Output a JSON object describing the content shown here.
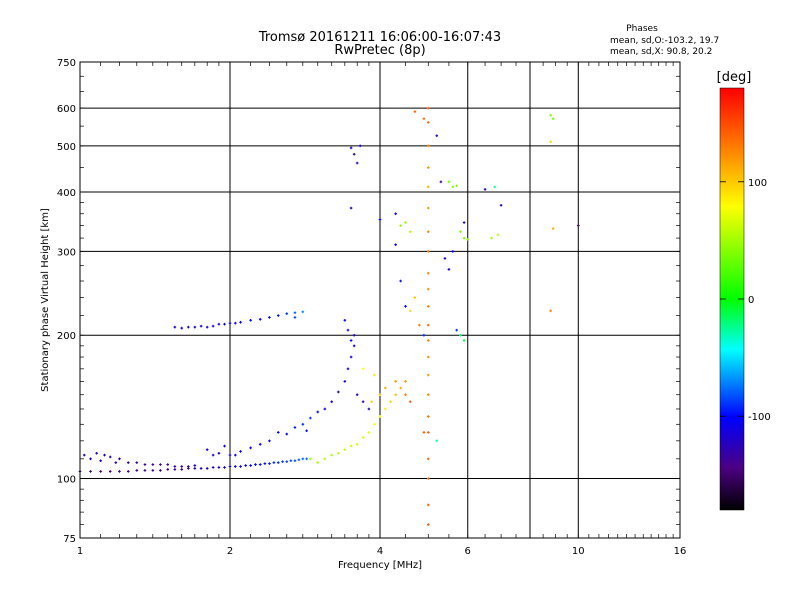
{
  "chart_data": {
    "type": "scatter",
    "title": "Tromsø 20161211 16:06:00-16:07:43",
    "subtitle": "RwPretec (8p)",
    "info": {
      "heading": "Phases",
      "line1": "mean, sd,O:-103.2, 19.7",
      "line2": "mean, sd,X:  90.8, 20.2"
    },
    "xlabel": "Frequency [MHz]",
    "ylabel": "Stationary phase Virtual Height [km]",
    "x_scale": "log",
    "y_scale": "log",
    "xlim": [
      1,
      16
    ],
    "ylim": [
      75,
      750
    ],
    "x_ticks": [
      {
        "v": 1,
        "label": "1"
      },
      {
        "v": 2,
        "label": "2"
      },
      {
        "v": 4,
        "label": "4"
      },
      {
        "v": 6,
        "label": "6"
      },
      {
        "v": 8,
        "label": ""
      },
      {
        "v": 10,
        "label": "10"
      },
      {
        "v": 16,
        "label": "16"
      }
    ],
    "y_ticks": [
      {
        "v": 75,
        "label": "75"
      },
      {
        "v": 100,
        "label": "100"
      },
      {
        "v": 200,
        "label": "200"
      },
      {
        "v": 300,
        "label": "300"
      },
      {
        "v": 400,
        "label": "400"
      },
      {
        "v": 500,
        "label": "500"
      },
      {
        "v": 600,
        "label": "600"
      },
      {
        "v": 750,
        "label": "750"
      }
    ],
    "grid": true,
    "colorbar": {
      "label": "[deg]",
      "range": [
        -180,
        180
      ],
      "ticks": [
        {
          "v": 100,
          "label": "100"
        },
        {
          "v": 0,
          "label": "0"
        },
        {
          "v": -100,
          "label": "-100"
        }
      ]
    },
    "series": [
      {
        "points": [
          [
            1.0,
            103.5,
            -150
          ],
          [
            1.05,
            103.5,
            -148
          ],
          [
            1.1,
            103.5,
            -146
          ],
          [
            1.15,
            103.5,
            -144
          ],
          [
            1.2,
            103.5,
            -142
          ],
          [
            1.25,
            103.5,
            -140
          ],
          [
            1.3,
            104,
            -138
          ],
          [
            1.35,
            104,
            -136
          ],
          [
            1.4,
            104,
            -134
          ],
          [
            1.45,
            104,
            -132
          ],
          [
            1.5,
            104.5,
            -130
          ],
          [
            1.55,
            104.5,
            -128
          ],
          [
            1.6,
            104.5,
            -126
          ],
          [
            1.65,
            105,
            -124
          ],
          [
            1.7,
            105,
            -122
          ],
          [
            1.75,
            105,
            -120
          ],
          [
            1.8,
            105,
            -118
          ],
          [
            1.85,
            105.5,
            -116
          ],
          [
            1.9,
            105.5,
            -114
          ],
          [
            1.95,
            105.5,
            -112
          ],
          [
            2.0,
            106,
            -110
          ],
          [
            2.05,
            106,
            -108
          ],
          [
            2.1,
            106,
            -106
          ],
          [
            2.15,
            106.5,
            -104
          ],
          [
            2.2,
            106.5,
            -102
          ],
          [
            2.25,
            107,
            -100
          ],
          [
            2.3,
            107,
            -98
          ],
          [
            2.35,
            107.5,
            -96
          ],
          [
            2.4,
            107.5,
            -94
          ],
          [
            2.45,
            108,
            -92
          ],
          [
            2.5,
            108,
            -90
          ],
          [
            2.55,
            108.5,
            -88
          ],
          [
            2.6,
            108.5,
            -86
          ],
          [
            2.65,
            109,
            -84
          ],
          [
            2.7,
            109,
            -82
          ],
          [
            2.75,
            109.5,
            -80
          ],
          [
            2.8,
            110,
            -78
          ],
          [
            2.85,
            110,
            -76
          ]
        ]
      },
      {
        "points": [
          [
            1.02,
            112,
            -120
          ],
          [
            1.05,
            110,
            -115
          ],
          [
            1.08,
            113,
            -112
          ],
          [
            1.1,
            109,
            -118
          ],
          [
            1.12,
            112,
            -110
          ],
          [
            1.15,
            111,
            -120
          ],
          [
            1.18,
            108,
            -122
          ],
          [
            1.2,
            110,
            -125
          ],
          [
            1.25,
            108,
            -128
          ],
          [
            1.3,
            108,
            -130
          ],
          [
            1.35,
            107,
            -132
          ],
          [
            1.4,
            107,
            -135
          ],
          [
            1.45,
            107,
            -133
          ],
          [
            1.5,
            107,
            -130
          ],
          [
            1.55,
            106,
            -128
          ],
          [
            1.6,
            106,
            -126
          ],
          [
            1.65,
            106,
            -124
          ],
          [
            1.7,
            106.5,
            -122
          ],
          [
            1.8,
            115,
            -110
          ],
          [
            1.85,
            112,
            -112
          ],
          [
            1.9,
            113,
            -115
          ],
          [
            1.95,
            117,
            -108
          ],
          [
            2.0,
            112,
            -110
          ],
          [
            2.05,
            112,
            -108
          ],
          [
            2.1,
            114,
            -106
          ],
          [
            2.2,
            116,
            -105
          ],
          [
            2.3,
            118,
            -100
          ],
          [
            2.4,
            120,
            -98
          ],
          [
            2.5,
            125,
            -102
          ],
          [
            2.6,
            124,
            -100
          ],
          [
            2.7,
            128,
            -95
          ],
          [
            2.8,
            130,
            -92
          ],
          [
            2.85,
            126,
            -96
          ],
          [
            2.9,
            134,
            -90
          ],
          [
            3.0,
            138,
            -98
          ],
          [
            3.1,
            140,
            -110
          ],
          [
            3.2,
            145,
            -115
          ],
          [
            3.3,
            152,
            -118
          ],
          [
            3.4,
            160,
            -120
          ],
          [
            3.45,
            170,
            -115
          ],
          [
            3.5,
            180,
            -110
          ],
          [
            3.55,
            190,
            -108
          ],
          [
            3.6,
            150,
            -125
          ],
          [
            3.7,
            145,
            -128
          ],
          [
            3.8,
            140,
            -120
          ],
          [
            3.4,
            215,
            -105
          ],
          [
            3.45,
            205,
            -110
          ],
          [
            3.5,
            195,
            -100
          ],
          [
            3.55,
            200,
            -115
          ]
        ]
      },
      {
        "points": [
          [
            1.55,
            208,
            -110
          ],
          [
            1.6,
            207,
            -108
          ],
          [
            1.65,
            208,
            -112
          ],
          [
            1.7,
            208,
            -110
          ],
          [
            1.75,
            209,
            -108
          ],
          [
            1.8,
            208,
            -110
          ],
          [
            1.85,
            209,
            -112
          ],
          [
            1.9,
            211,
            -110
          ],
          [
            1.95,
            211,
            -105
          ],
          [
            2.0,
            212,
            -108
          ],
          [
            2.05,
            212,
            -110
          ],
          [
            2.1,
            213,
            -105
          ],
          [
            2.2,
            215,
            -100
          ],
          [
            2.3,
            216,
            -102
          ],
          [
            2.4,
            218,
            -98
          ],
          [
            2.5,
            220,
            -95
          ],
          [
            2.6,
            222,
            -90
          ],
          [
            2.7,
            223,
            -80
          ],
          [
            2.8,
            224,
            -70
          ],
          [
            2.7,
            218,
            -85
          ]
        ]
      },
      {
        "points": [
          [
            2.9,
            110,
            60
          ],
          [
            3.0,
            108,
            65
          ],
          [
            3.1,
            110,
            70
          ],
          [
            3.2,
            112,
            68
          ],
          [
            3.3,
            113,
            72
          ],
          [
            3.4,
            115,
            75
          ],
          [
            3.5,
            117,
            78
          ],
          [
            3.6,
            118,
            80
          ],
          [
            3.7,
            122,
            85
          ],
          [
            3.8,
            125,
            90
          ],
          [
            3.9,
            130,
            95
          ],
          [
            4.0,
            135,
            100
          ],
          [
            4.1,
            140,
            105
          ],
          [
            4.2,
            145,
            110
          ],
          [
            4.3,
            150,
            115
          ],
          [
            4.4,
            155,
            120
          ],
          [
            4.5,
            160,
            125
          ],
          [
            3.85,
            145,
            110
          ],
          [
            4.0,
            150,
            115
          ],
          [
            4.1,
            155,
            120
          ],
          [
            4.3,
            160,
            125
          ],
          [
            4.5,
            150,
            130
          ],
          [
            4.6,
            145,
            140
          ],
          [
            3.7,
            170,
            100
          ],
          [
            3.9,
            165,
            105
          ]
        ]
      },
      {
        "points": [
          [
            3.5,
            495,
            -120
          ],
          [
            3.55,
            480,
            -125
          ],
          [
            3.6,
            460,
            -130
          ],
          [
            3.65,
            500,
            -115
          ],
          [
            3.5,
            370,
            -125
          ],
          [
            4.0,
            350,
            -100
          ],
          [
            4.3,
            360,
            -110
          ],
          [
            4.4,
            340,
            50
          ],
          [
            4.5,
            345,
            60
          ],
          [
            4.6,
            330,
            70
          ],
          [
            4.4,
            260,
            -95
          ],
          [
            4.5,
            230,
            -100
          ],
          [
            4.6,
            225,
            110
          ],
          [
            4.7,
            240,
            115
          ],
          [
            4.9,
            200,
            -90
          ],
          [
            5.2,
            525,
            -120
          ],
          [
            5.3,
            420,
            -130
          ],
          [
            5.5,
            420,
            40
          ],
          [
            5.6,
            410,
            45
          ],
          [
            5.7,
            412,
            50
          ],
          [
            5.8,
            330,
            40
          ],
          [
            5.9,
            320,
            45
          ],
          [
            6.0,
            318,
            50
          ],
          [
            5.9,
            345,
            -110
          ],
          [
            5.8,
            200,
            -20
          ],
          [
            5.9,
            195,
            -10
          ],
          [
            5.7,
            205,
            -90
          ],
          [
            6.5,
            405,
            -120
          ],
          [
            6.8,
            410,
            -30
          ],
          [
            7.0,
            375,
            -125
          ],
          [
            6.7,
            320,
            60
          ],
          [
            6.9,
            325,
            70
          ],
          [
            8.8,
            580,
            50
          ],
          [
            8.9,
            570,
            45
          ],
          [
            8.8,
            510,
            110
          ],
          [
            8.9,
            335,
            120
          ],
          [
            8.8,
            225,
            130
          ],
          [
            10.0,
            340,
            -140
          ],
          [
            5.4,
            290,
            -120
          ],
          [
            5.5,
            275,
            -110
          ],
          [
            5.6,
            300,
            -100
          ],
          [
            4.3,
            310,
            -105
          ],
          [
            5.2,
            120,
            -30
          ],
          [
            4.9,
            125,
            140
          ]
        ]
      },
      {
        "points": [
          [
            5.0,
            600,
            140
          ],
          [
            5.0,
            560,
            135
          ],
          [
            5.0,
            500,
            130
          ],
          [
            5.0,
            450,
            125
          ],
          [
            5.0,
            410,
            120
          ],
          [
            5.0,
            370,
            125
          ],
          [
            5.0,
            330,
            130
          ],
          [
            5.0,
            300,
            135
          ],
          [
            5.0,
            270,
            130
          ],
          [
            5.0,
            250,
            128
          ],
          [
            5.0,
            230,
            132
          ],
          [
            5.0,
            210,
            135
          ],
          [
            5.0,
            195,
            130
          ],
          [
            5.0,
            180,
            128
          ],
          [
            5.0,
            165,
            125
          ],
          [
            5.0,
            150,
            130
          ],
          [
            5.0,
            135,
            135
          ],
          [
            5.0,
            125,
            140
          ],
          [
            5.0,
            110,
            138
          ],
          [
            5.0,
            100,
            135
          ],
          [
            5.0,
            88,
            140
          ],
          [
            5.0,
            80,
            145
          ],
          [
            4.8,
            210,
            130
          ],
          [
            4.7,
            590,
            140
          ],
          [
            4.9,
            570,
            135
          ]
        ]
      }
    ]
  }
}
